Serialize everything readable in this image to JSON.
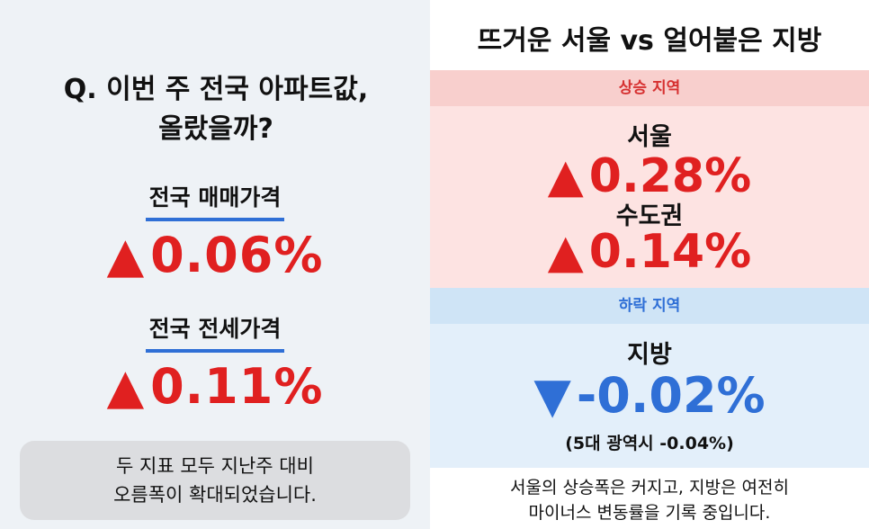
{
  "left": {
    "question_line1": "Q. 이번 주 전국 아파트값,",
    "question_line2": "올랐을까?",
    "metrics": [
      {
        "label": "전국 매매가격",
        "arrow": "▲",
        "value": "0.06%"
      },
      {
        "label": "전국 전세가격",
        "arrow": "▲",
        "value": "0.11%"
      }
    ],
    "summary_line1": "두 지표 모두 지난주 대비",
    "summary_line2": "오름폭이 확대되었습니다."
  },
  "right": {
    "title": "뜨거운 서울 vs 얼어붙은 지방",
    "rise_section": {
      "header": "상승 지역",
      "regions": [
        {
          "name": "서울",
          "arrow": "▲",
          "value": "0.28%"
        },
        {
          "name": "수도권",
          "arrow": "▲",
          "value": "0.14%"
        }
      ]
    },
    "fall_section": {
      "header": "하락 지역",
      "region": {
        "name": "지방",
        "arrow": "▼",
        "value": "-0.02%"
      },
      "note": "(5대 광역시 -0.04%)"
    },
    "footer_line1": "서울의 상승폭은 커지고, 지방은 여전히",
    "footer_line2": "마이너스 변동률을 기록 중입니다."
  },
  "colors": {
    "rise": "#e02020",
    "fall": "#2f6fd6",
    "rise_bg": "#fde3e2",
    "fall_bg": "#e3effa",
    "left_bg": "#eef2f6",
    "underline": "#2f6fd6"
  }
}
